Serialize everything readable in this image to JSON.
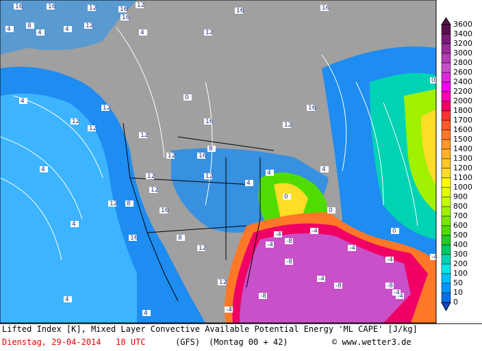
{
  "map": {
    "colorbar": {
      "levels": [
        3600,
        3400,
        3200,
        3000,
        2800,
        2600,
        2400,
        2200,
        2000,
        1800,
        1700,
        1600,
        1500,
        1400,
        1300,
        1200,
        1100,
        1000,
        900,
        800,
        700,
        600,
        500,
        400,
        300,
        200,
        100,
        50,
        10,
        0
      ],
      "colors": [
        "#5a1050",
        "#7a1a78",
        "#9a2a98",
        "#b43cb4",
        "#c850c8",
        "#dc28dc",
        "#f000f0",
        "#ff00b4",
        "#f00064",
        "#ff3232",
        "#ff5a28",
        "#ff7828",
        "#ff9628",
        "#ffb428",
        "#ffc828",
        "#ffdc28",
        "#ffff00",
        "#e6ff00",
        "#c8ff00",
        "#a0f000",
        "#78e600",
        "#50dc00",
        "#28c828",
        "#00c864",
        "#00d2b4",
        "#00e6e6",
        "#00beff",
        "#0096ff",
        "#0a6ee6",
        "#0a50c8"
      ]
    },
    "labels": [
      "16",
      "16",
      "12",
      "16",
      "16",
      "4",
      "4",
      "4",
      "12",
      "8",
      "16",
      "16",
      "12",
      "12",
      "4",
      "0",
      "16",
      "12",
      "0",
      "4",
      "12",
      "12",
      "12",
      "12",
      "16",
      "16",
      "12",
      "12",
      "8",
      "12",
      "16",
      "4",
      "12",
      "16",
      "8",
      "12",
      "4",
      "4",
      "4",
      "12",
      "12",
      "8",
      "0",
      "0",
      "0",
      "4",
      "4",
      "4",
      "-4",
      "-4",
      "-4",
      "-8",
      "-8",
      "-8",
      "-4",
      "-8",
      "-4",
      "-4",
      "-4",
      "-4",
      "-8",
      "-4",
      "-4"
    ]
  },
  "caption": {
    "line1": "Lifted Index [K], Mixed Layer Convective Available Potential Energy 'ML CAPE' [J/kg]",
    "date": "Dienstag, 29-04-2014   18 UTC",
    "model": "(GFS)",
    "run": "(Montag 00 + 42)",
    "credit": "© www.wetter3.de"
  }
}
